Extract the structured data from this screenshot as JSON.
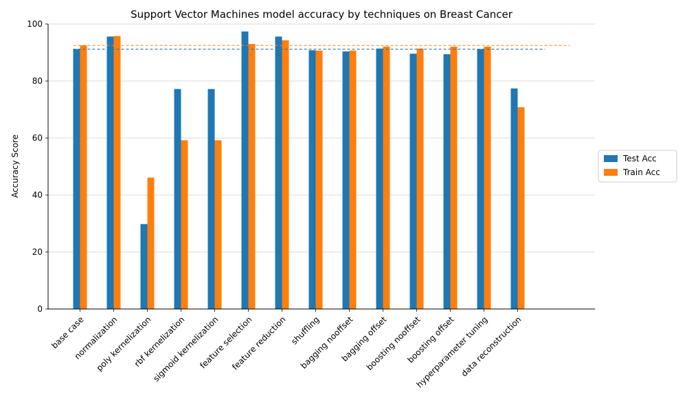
{
  "chart_data": {
    "type": "bar",
    "title": "Support Vector Machines model accuracy by techniques on Breast Cancer",
    "xlabel": "",
    "ylabel": "Accuracy Score",
    "ylim": [
      0,
      100
    ],
    "yticks": [
      0,
      20,
      40,
      60,
      80,
      100
    ],
    "grid": "y",
    "legend_position": "right",
    "categories": [
      "base case",
      "normalization",
      "poly kernelization",
      "rbf kernelization",
      "sigmoid kernelization",
      "feature selection",
      "feature reduction",
      "shuffling",
      "bagging nooffset",
      "bagging offset",
      "boosting nooffset",
      "boosting offset",
      "hyperparameter tuning",
      "data reconstruction"
    ],
    "series": [
      {
        "name": "Test Acc",
        "color": "#1f77b4",
        "values": [
          91.2,
          95.6,
          29.8,
          77.2,
          77.2,
          97.4,
          95.6,
          90.8,
          90.4,
          91.4,
          89.6,
          89.4,
          91.2,
          77.4
        ],
        "baseline": 91.2
      },
      {
        "name": "Train Acc",
        "color": "#ff7f0e",
        "values": [
          92.5,
          95.8,
          46.1,
          59.2,
          59.2,
          93.0,
          94.3,
          90.7,
          90.7,
          92.1,
          91.4,
          92.1,
          92.1,
          70.8
        ],
        "baseline": 92.5
      }
    ]
  }
}
